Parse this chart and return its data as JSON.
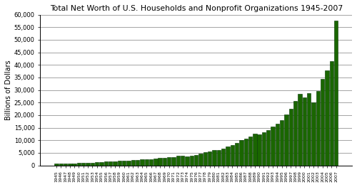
{
  "title": "Total Net Worth of U.S. Households and Nonprofit Organizations 1945-2007",
  "ylabel": "Billions of Dollars",
  "bar_color": "#1a6600",
  "bar_edge_color": "#003300",
  "background_color": "#ffffff",
  "ylim": [
    0,
    60000
  ],
  "yticks": [
    0,
    5000,
    10000,
    15000,
    20000,
    25000,
    30000,
    35000,
    40000,
    45000,
    50000,
    55000,
    60000
  ],
  "years": [
    1945,
    1946,
    1947,
    1948,
    1949,
    1950,
    1951,
    1952,
    1953,
    1954,
    1955,
    1956,
    1957,
    1958,
    1959,
    1960,
    1961,
    1962,
    1963,
    1964,
    1965,
    1966,
    1967,
    1968,
    1969,
    1970,
    1971,
    1972,
    1973,
    1974,
    1975,
    1976,
    1977,
    1978,
    1979,
    1980,
    1981,
    1982,
    1983,
    1984,
    1985,
    1986,
    1987,
    1988,
    1989,
    1990,
    1991,
    1992,
    1993,
    1994,
    1995,
    1996,
    1997,
    1998,
    1999,
    2000,
    2001,
    2002,
    2003,
    2004,
    2005,
    2006,
    2007
  ],
  "values": [
    700,
    760,
    790,
    830,
    860,
    950,
    1060,
    1110,
    1140,
    1230,
    1380,
    1480,
    1530,
    1630,
    1720,
    1830,
    1980,
    2020,
    2130,
    2280,
    2480,
    2520,
    2720,
    3030,
    3080,
    3130,
    3320,
    3720,
    3770,
    3480,
    3820,
    4250,
    4680,
    5150,
    5650,
    5980,
    6150,
    6760,
    7560,
    8150,
    8980,
    9960,
    10660,
    11570,
    12650,
    12450,
    13250,
    14150,
    15550,
    16550,
    18050,
    20150,
    22550,
    25550,
    28550,
    27150,
    28750,
    24950,
    29650,
    34350,
    37850,
    41450,
    57600
  ]
}
